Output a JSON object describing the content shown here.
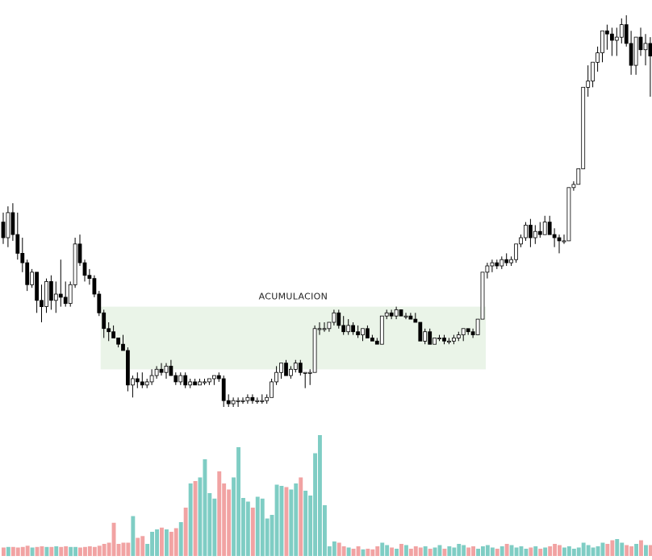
{
  "chart_data": {
    "type": "candlestick",
    "title": "",
    "xlabel": "",
    "ylabel": "",
    "grid": false,
    "colors": {
      "up_candle_fill": "#ffffff",
      "down_candle_fill": "#000000",
      "candle_outline": "#000000",
      "volume_up": "#7fcdc4",
      "volume_down": "#f1a3a3",
      "zone_fill": "#eaf4e8"
    },
    "zone": {
      "label": "ACUMULACION",
      "from_index": 21,
      "to_index": 100,
      "price_top": 98,
      "price_bottom": 78
    },
    "candles": [
      [
        125,
        128,
        118,
        120
      ],
      [
        120,
        130,
        117,
        128
      ],
      [
        128,
        131,
        119,
        121
      ],
      [
        121,
        128,
        113,
        115
      ],
      [
        115,
        120,
        109,
        112
      ],
      [
        112,
        113,
        103,
        105
      ],
      [
        105,
        110,
        104,
        109
      ],
      [
        109,
        109,
        96,
        100
      ],
      [
        100,
        105,
        93,
        98
      ],
      [
        98,
        107,
        96,
        106
      ],
      [
        106,
        108,
        97,
        100
      ],
      [
        100,
        106,
        96,
        102
      ],
      [
        102,
        113,
        98,
        101
      ],
      [
        101,
        106,
        98,
        99
      ],
      [
        99,
        106,
        98,
        105
      ],
      [
        105,
        120,
        104,
        118
      ],
      [
        118,
        121,
        111,
        112
      ],
      [
        112,
        113,
        106,
        108
      ],
      [
        108,
        110,
        105,
        107
      ],
      [
        107,
        108,
        101,
        102
      ],
      [
        102,
        103,
        95,
        96
      ],
      [
        96,
        97,
        88,
        91
      ],
      [
        91,
        93,
        87,
        90
      ],
      [
        90,
        92,
        88,
        88
      ],
      [
        88,
        88,
        85,
        86
      ],
      [
        86,
        89,
        84,
        84
      ],
      [
        84,
        85,
        71,
        73
      ],
      [
        73,
        76,
        69,
        75
      ],
      [
        75,
        77,
        72,
        74
      ],
      [
        74,
        77,
        72,
        73
      ],
      [
        73,
        75,
        72,
        74
      ],
      [
        74,
        78,
        73,
        76
      ],
      [
        76,
        79,
        75,
        78
      ],
      [
        78,
        80,
        76,
        77
      ],
      [
        77,
        80,
        75,
        79
      ],
      [
        79,
        81,
        77,
        76
      ],
      [
        76,
        77,
        73,
        74
      ],
      [
        74,
        77,
        73,
        76
      ],
      [
        76,
        77,
        72,
        73
      ],
      [
        73,
        75,
        72,
        74
      ],
      [
        74,
        75,
        73,
        73
      ],
      [
        73,
        75,
        73,
        74
      ],
      [
        74,
        75,
        73,
        74
      ],
      [
        74,
        75,
        73,
        75
      ],
      [
        75,
        76,
        73,
        76
      ],
      [
        76,
        77,
        74,
        75
      ],
      [
        75,
        76,
        66,
        68
      ],
      [
        68,
        70,
        66,
        67
      ],
      [
        67,
        69,
        66,
        68
      ],
      [
        68,
        69,
        66,
        68
      ],
      [
        68,
        69,
        67,
        68
      ],
      [
        68,
        70,
        67,
        69
      ],
      [
        69,
        70,
        67,
        68
      ],
      [
        68,
        69,
        67,
        68
      ],
      [
        68,
        70,
        67,
        68
      ],
      [
        68,
        70,
        67,
        69
      ],
      [
        69,
        75,
        69,
        74
      ],
      [
        74,
        79,
        73,
        77
      ],
      [
        77,
        80,
        75,
        80
      ],
      [
        80,
        81,
        76,
        76
      ],
      [
        76,
        79,
        75,
        78
      ],
      [
        78,
        81,
        77,
        80
      ],
      [
        80,
        81,
        76,
        77
      ],
      [
        77,
        77,
        72,
        77
      ],
      [
        77,
        78,
        73,
        77
      ],
      [
        77,
        92,
        77,
        91
      ],
      [
        91,
        93,
        89,
        91
      ],
      [
        91,
        93,
        90,
        91
      ],
      [
        91,
        93,
        90,
        93
      ],
      [
        93,
        97,
        92,
        96
      ],
      [
        96,
        97,
        91,
        92
      ],
      [
        92,
        95,
        89,
        90
      ],
      [
        90,
        94,
        89,
        92
      ],
      [
        92,
        93,
        89,
        90
      ],
      [
        90,
        92,
        88,
        89
      ],
      [
        89,
        91,
        87,
        91
      ],
      [
        91,
        92,
        88,
        88
      ],
      [
        88,
        89,
        87,
        87
      ],
      [
        87,
        88,
        86,
        86
      ],
      [
        86,
        95,
        86,
        95
      ],
      [
        95,
        97,
        94,
        96
      ],
      [
        96,
        97,
        94,
        95
      ],
      [
        95,
        98,
        94,
        97
      ],
      [
        97,
        97,
        95,
        95
      ],
      [
        95,
        96,
        94,
        95
      ],
      [
        95,
        96,
        94,
        94
      ],
      [
        94,
        96,
        93,
        93
      ],
      [
        93,
        93,
        87,
        87
      ],
      [
        87,
        91,
        86,
        90
      ],
      [
        90,
        91,
        86,
        86
      ],
      [
        86,
        88,
        86,
        88
      ],
      [
        88,
        89,
        87,
        88
      ],
      [
        88,
        89,
        86,
        87
      ],
      [
        87,
        88,
        86,
        87
      ],
      [
        87,
        89,
        86,
        88
      ],
      [
        88,
        90,
        87,
        89
      ],
      [
        89,
        91,
        87,
        91
      ],
      [
        91,
        91,
        89,
        90
      ],
      [
        90,
        91,
        88,
        89
      ],
      [
        89,
        94,
        89,
        94
      ],
      [
        94,
        109,
        94,
        109
      ],
      [
        109,
        112,
        107,
        111
      ],
      [
        111,
        113,
        109,
        112
      ],
      [
        112,
        113,
        110,
        111
      ],
      [
        111,
        114,
        110,
        113
      ],
      [
        113,
        115,
        111,
        112
      ],
      [
        112,
        114,
        111,
        113
      ],
      [
        113,
        118,
        112,
        118
      ],
      [
        118,
        121,
        117,
        120
      ],
      [
        120,
        125,
        119,
        124
      ],
      [
        124,
        126,
        117,
        120
      ],
      [
        120,
        124,
        118,
        122
      ],
      [
        122,
        125,
        120,
        121
      ],
      [
        121,
        127,
        121,
        125
      ],
      [
        125,
        127,
        121,
        121
      ],
      [
        121,
        123,
        117,
        120
      ],
      [
        120,
        121,
        115,
        119
      ],
      [
        119,
        121,
        118,
        119
      ],
      [
        119,
        136,
        119,
        136
      ],
      [
        136,
        138,
        135,
        137
      ],
      [
        137,
        142,
        137,
        142
      ],
      [
        142,
        168,
        142,
        168
      ],
      [
        168,
        175,
        165,
        170
      ],
      [
        170,
        176,
        168,
        176
      ],
      [
        176,
        181,
        173,
        179
      ],
      [
        179,
        186,
        176,
        186
      ],
      [
        186,
        188,
        180,
        185
      ],
      [
        185,
        187,
        178,
        183
      ],
      [
        183,
        187,
        178,
        184
      ],
      [
        184,
        190,
        182,
        188
      ],
      [
        188,
        191,
        181,
        182
      ],
      [
        182,
        186,
        172,
        175
      ],
      [
        175,
        184,
        172,
        184
      ],
      [
        184,
        187,
        178,
        180
      ],
      [
        180,
        185,
        175,
        182
      ],
      [
        182,
        184,
        165,
        178
      ],
      [
        178,
        188,
        174,
        186
      ]
    ],
    "volume": [
      14,
      15,
      15,
      14,
      15,
      17,
      14,
      15,
      16,
      15,
      15,
      16,
      15,
      16,
      15,
      15,
      14,
      15,
      16,
      15,
      17,
      20,
      22,
      55,
      20,
      22,
      22,
      66,
      30,
      33,
      20,
      40,
      44,
      47,
      44,
      40,
      46,
      56,
      80,
      120,
      124,
      130,
      160,
      104,
      95,
      140,
      120,
      110,
      130,
      180,
      96,
      90,
      80,
      98,
      95,
      62,
      68,
      118,
      116,
      114,
      110,
      120,
      130,
      108,
      100,
      170,
      200,
      84,
      16,
      24,
      22,
      16,
      14,
      12,
      16,
      11,
      12,
      11,
      16,
      22,
      18,
      14,
      12,
      20,
      18,
      12,
      16,
      14,
      16,
      12,
      14,
      18,
      12,
      16,
      14,
      20,
      18,
      14,
      16,
      12,
      16,
      18,
      14,
      12,
      16,
      20,
      18,
      14,
      16,
      12,
      14,
      16,
      12,
      14,
      16,
      20,
      18,
      14,
      16,
      12,
      14,
      22,
      18,
      14,
      16,
      22,
      20,
      26,
      28,
      22,
      18,
      16,
      20,
      26,
      18,
      18,
      16
    ]
  }
}
